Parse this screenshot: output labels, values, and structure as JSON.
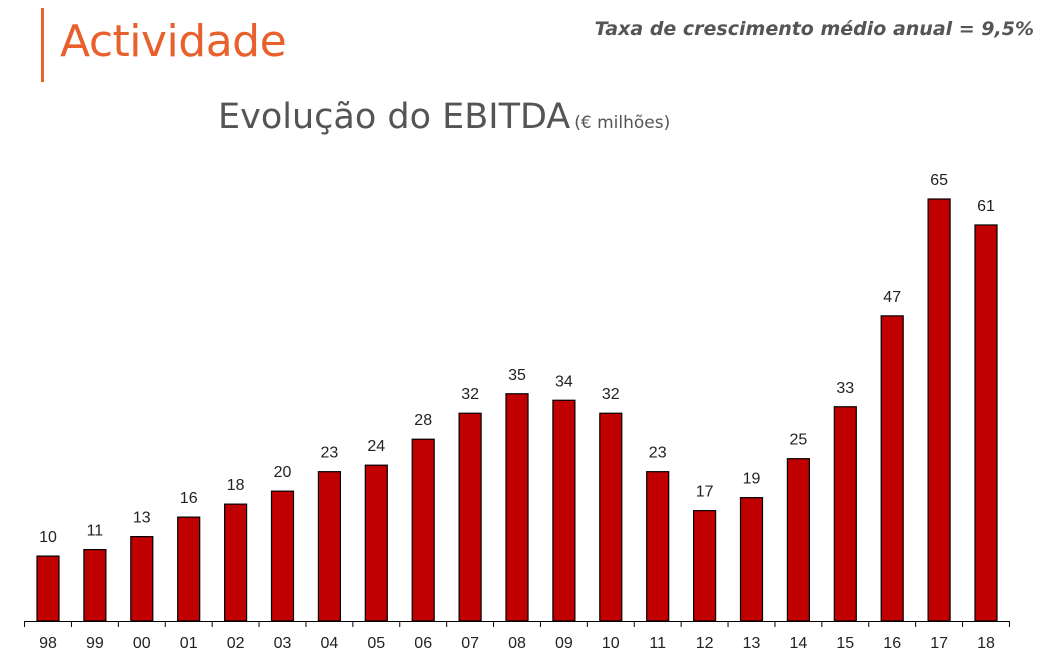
{
  "header": {
    "section_title": "Actividade",
    "growth_note": "Taxa de crescimento médio anual = 9,5%"
  },
  "colors": {
    "accent": "#e8602c",
    "bar": "#c00000",
    "text": "#555555"
  },
  "chart_data": {
    "type": "bar",
    "title": "Evolução do EBITDA",
    "unit_label": "(€ milhões)",
    "xlabel": "",
    "ylabel": "",
    "categories": [
      "98",
      "99",
      "00",
      "01",
      "02",
      "03",
      "04",
      "05",
      "06",
      "07",
      "08",
      "09",
      "10",
      "11",
      "12",
      "13",
      "14",
      "15",
      "16",
      "17",
      "18"
    ],
    "values": [
      10,
      11,
      13,
      16,
      18,
      20,
      23,
      24,
      28,
      32,
      35,
      34,
      32,
      23,
      17,
      19,
      25,
      33,
      47,
      65,
      61
    ],
    "data_labels": [
      "10",
      "11",
      "13",
      "16",
      "18",
      "20",
      "23",
      "24",
      "28",
      "32",
      "35",
      "34",
      "32",
      "23",
      "17",
      "19",
      "25",
      "33",
      "47",
      "65",
      "61"
    ],
    "ylim": [
      0,
      65
    ],
    "grid": false,
    "legend": "none"
  }
}
